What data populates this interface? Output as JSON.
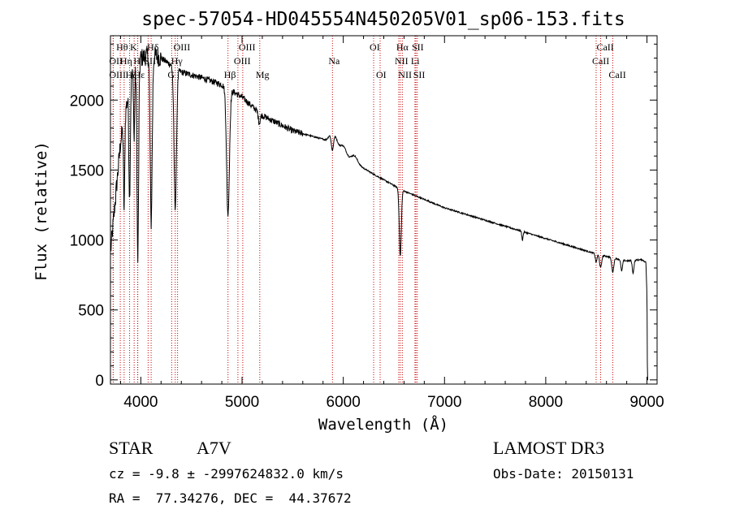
{
  "chart_data": {
    "type": "line",
    "title": "spec-57054-HD045554N450205V01_sp06-153.fits",
    "xlabel": "Wavelength (Å)",
    "ylabel": "Flux (relative)",
    "xlim": [
      3700,
      9100
    ],
    "ylim": [
      -30,
      2460
    ],
    "xticks": [
      4000,
      5000,
      6000,
      7000,
      8000,
      9000
    ],
    "yticks": [
      0,
      500,
      1000,
      1500,
      2000
    ],
    "spectrum": {
      "continuum": [
        [
          3700,
          900
        ],
        [
          3800,
          1700
        ],
        [
          3900,
          2150
        ],
        [
          4000,
          2300
        ],
        [
          4100,
          2330
        ],
        [
          4200,
          2300
        ],
        [
          4300,
          2250
        ],
        [
          4400,
          2200
        ],
        [
          4600,
          2160
        ],
        [
          4800,
          2110
        ],
        [
          5000,
          2020
        ],
        [
          5200,
          1890
        ],
        [
          5500,
          1780
        ],
        [
          5800,
          1720
        ],
        [
          6000,
          1600
        ],
        [
          6300,
          1470
        ],
        [
          6600,
          1350
        ],
        [
          7000,
          1230
        ],
        [
          7500,
          1120
        ],
        [
          8000,
          1010
        ],
        [
          8500,
          900
        ],
        [
          8800,
          850
        ],
        [
          8950,
          860
        ],
        [
          8990,
          840
        ],
        [
          9000,
          600
        ],
        [
          9005,
          0
        ]
      ],
      "absorption": [
        {
          "wave": 3835,
          "depth": 650,
          "width": 6
        },
        {
          "wave": 3889,
          "depth": 800,
          "width": 7
        },
        {
          "wave": 3934,
          "depth": 500,
          "width": 5
        },
        {
          "wave": 3970,
          "depth": 1400,
          "width": 8
        },
        {
          "wave": 4102,
          "depth": 1200,
          "width": 10
        },
        {
          "wave": 4340,
          "depth": 1000,
          "width": 12
        },
        {
          "wave": 4861,
          "depth": 900,
          "width": 14
        },
        {
          "wave": 5170,
          "depth": 70,
          "width": 10
        },
        {
          "wave": 5893,
          "depth": 140,
          "width": 12
        },
        {
          "wave": 6563,
          "depth": 480,
          "width": 10
        },
        {
          "wave": 7770,
          "depth": 60,
          "width": 6
        },
        {
          "wave": 8498,
          "depth": 60,
          "width": 8
        },
        {
          "wave": 8542,
          "depth": 90,
          "width": 10
        },
        {
          "wave": 8662,
          "depth": 100,
          "width": 10
        },
        {
          "wave": 8750,
          "depth": 80,
          "width": 8
        },
        {
          "wave": 8863,
          "depth": 90,
          "width": 8
        }
      ],
      "emission": [
        {
          "wave": 5900,
          "height": 120,
          "width": 35
        },
        {
          "wave": 6000,
          "height": 70,
          "width": 30
        },
        {
          "wave": 6110,
          "height": 50,
          "width": 30
        }
      ]
    },
    "lines": [
      {
        "label": "Hθ",
        "wave": 3797,
        "row": 1
      },
      {
        "label": "K",
        "wave": 3934,
        "row": 1
      },
      {
        "label": "Hδ",
        "wave": 4102,
        "row": 1
      },
      {
        "label": "OIII",
        "wave": 4363,
        "row": 1
      },
      {
        "label": "OIII",
        "wave": 5007,
        "row": 1
      },
      {
        "label": "OI",
        "wave": 6300,
        "row": 1
      },
      {
        "label": "Hα",
        "wave": 6563,
        "row": 1
      },
      {
        "label": "SII",
        "wave": 6717,
        "row": 1
      },
      {
        "label": "CaII",
        "wave": 8542,
        "row": 1
      },
      {
        "label": "OII",
        "wave": 3727,
        "row": 2
      },
      {
        "label": "Hη",
        "wave": 3835,
        "row": 2
      },
      {
        "label": "H",
        "wave": 3968,
        "row": 2
      },
      {
        "label": "SII",
        "wave": 4072,
        "row": 2
      },
      {
        "label": "Hγ",
        "wave": 4340,
        "row": 2
      },
      {
        "label": "OIII",
        "wave": 4959,
        "row": 2
      },
      {
        "label": "Na",
        "wave": 5893,
        "row": 2
      },
      {
        "label": "NII",
        "wave": 6548,
        "row": 2
      },
      {
        "label": "Li",
        "wave": 6708,
        "row": 2
      },
      {
        "label": "CaII",
        "wave": 8498,
        "row": 2
      },
      {
        "label": "OIII",
        "wave": 3727,
        "row": 3
      },
      {
        "label": "Hζ",
        "wave": 3889,
        "row": 3
      },
      {
        "label": "Hε",
        "wave": 3970,
        "row": 3
      },
      {
        "label": "G",
        "wave": 4305,
        "row": 3
      },
      {
        "label": "Hβ",
        "wave": 4861,
        "row": 3
      },
      {
        "label": "Mg",
        "wave": 5175,
        "row": 3
      },
      {
        "label": "OI",
        "wave": 6364,
        "row": 3
      },
      {
        "label": "NII",
        "wave": 6583,
        "row": 3
      },
      {
        "label": "SII",
        "wave": 6731,
        "row": 3
      },
      {
        "label": "CaII",
        "wave": 8662,
        "row": 3
      }
    ]
  },
  "info": {
    "object_type": "STAR",
    "subclass": "A7V",
    "survey": "LAMOST DR3",
    "redshift": "cz = -9.8 ± -2997624832.0 km/s",
    "obs_date": "Obs-Date: 20150131",
    "coords": "RA =  77.34276, DEC =  44.37672"
  }
}
